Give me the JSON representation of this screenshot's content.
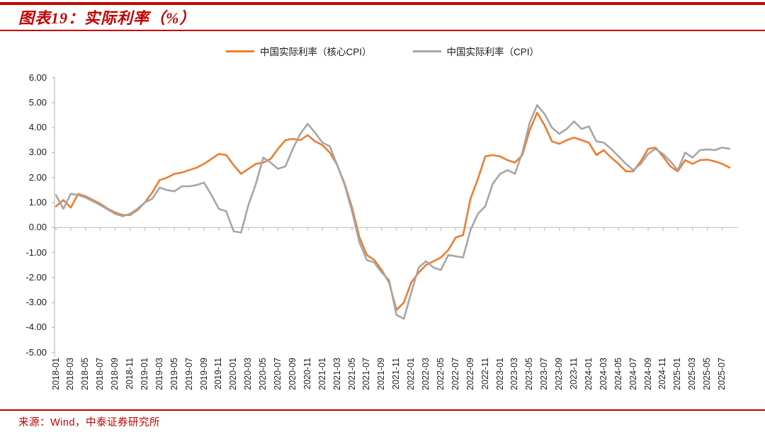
{
  "header": {
    "title": "图表19：实际利率（%）"
  },
  "colors": {
    "accent_red": "#C00000",
    "series_core_cpi": "#ED7D31",
    "series_cpi": "#A6A6A6",
    "axis_line": "#BFBFBF",
    "tick_mark": "#BFBFBF",
    "label_text": "#202020"
  },
  "legend": [
    {
      "label": "中国实际利率（核心CPI）",
      "color": "#ED7D31"
    },
    {
      "label": "中国实际利率（CPI）",
      "color": "#A6A6A6"
    }
  ],
  "footer": {
    "source": "来源：Wind，中泰证券研究所"
  },
  "chart_data": {
    "type": "line",
    "title": "图表19：实际利率（%）",
    "xlabel": "",
    "ylabel": "",
    "ylim": [
      -5,
      6
    ],
    "grid": false,
    "legend_position": "top",
    "y_ticks": [
      "6.00",
      "5.00",
      "4.00",
      "3.00",
      "2.00",
      "1.00",
      "0.00",
      "-1.00",
      "-2.00",
      "-3.00",
      "-4.00",
      "-5.00"
    ],
    "x_tick_labels": [
      "2018-01",
      "2018-03",
      "2018-05",
      "2018-07",
      "2018-09",
      "2018-11",
      "2019-01",
      "2019-03",
      "2019-05",
      "2019-07",
      "2019-09",
      "2019-11",
      "2020-01",
      "2020-03",
      "2020-05",
      "2020-07",
      "2020-09",
      "2020-11",
      "2021-01",
      "2021-03",
      "2021-05",
      "2021-07",
      "2021-09",
      "2021-11",
      "2022-01",
      "2022-03",
      "2022-05",
      "2022-07",
      "2022-09",
      "2022-11",
      "2023-01",
      "2023-03",
      "2023-05",
      "2023-07",
      "2023-09",
      "2023-11",
      "2024-01",
      "2024-03",
      "2024-05",
      "2024-07",
      "2024-09",
      "2024-11",
      "2025-01",
      "2025-03",
      "2025-05",
      "2025-07"
    ],
    "x": [
      "2018-01",
      "2018-02",
      "2018-03",
      "2018-04",
      "2018-05",
      "2018-06",
      "2018-07",
      "2018-08",
      "2018-09",
      "2018-10",
      "2018-11",
      "2018-12",
      "2019-01",
      "2019-02",
      "2019-03",
      "2019-04",
      "2019-05",
      "2019-06",
      "2019-07",
      "2019-08",
      "2019-09",
      "2019-10",
      "2019-11",
      "2019-12",
      "2020-01",
      "2020-02",
      "2020-03",
      "2020-04",
      "2020-05",
      "2020-06",
      "2020-07",
      "2020-08",
      "2020-09",
      "2020-10",
      "2020-11",
      "2020-12",
      "2021-01",
      "2021-02",
      "2021-03",
      "2021-04",
      "2021-05",
      "2021-06",
      "2021-07",
      "2021-08",
      "2021-09",
      "2021-10",
      "2021-11",
      "2021-12",
      "2022-01",
      "2022-02",
      "2022-03",
      "2022-04",
      "2022-05",
      "2022-06",
      "2022-07",
      "2022-08",
      "2022-09",
      "2022-10",
      "2022-11",
      "2022-12",
      "2023-01",
      "2023-02",
      "2023-03",
      "2023-04",
      "2023-05",
      "2023-06",
      "2023-07",
      "2023-08",
      "2023-09",
      "2023-10",
      "2023-11",
      "2023-12",
      "2024-01",
      "2024-02",
      "2024-03",
      "2024-04",
      "2024-05",
      "2024-06",
      "2024-07",
      "2024-08",
      "2024-09",
      "2024-10",
      "2024-11",
      "2024-12",
      "2025-01",
      "2025-02",
      "2025-03",
      "2025-04",
      "2025-05",
      "2025-06",
      "2025-07",
      "2025-08"
    ],
    "series": [
      {
        "name": "中国实际利率（核心CPI）",
        "color": "#ED7D31",
        "values": [
          0.85,
          1.1,
          0.8,
          1.35,
          1.25,
          1.1,
          0.95,
          0.75,
          0.6,
          0.5,
          0.5,
          0.7,
          1.0,
          1.4,
          1.9,
          2.0,
          2.15,
          2.2,
          2.3,
          2.4,
          2.55,
          2.75,
          2.95,
          2.9,
          2.5,
          2.15,
          2.35,
          2.55,
          2.6,
          2.75,
          3.15,
          3.5,
          3.55,
          3.5,
          3.7,
          3.45,
          3.3,
          3.0,
          2.5,
          1.75,
          0.8,
          -0.4,
          -1.1,
          -1.3,
          -1.7,
          -2.2,
          -3.3,
          -3.0,
          -2.2,
          -1.8,
          -1.5,
          -1.35,
          -1.2,
          -0.9,
          -0.4,
          -0.3,
          1.15,
          1.95,
          2.85,
          2.9,
          2.85,
          2.7,
          2.6,
          2.9,
          3.9,
          4.6,
          4.1,
          3.45,
          3.35,
          3.5,
          3.6,
          3.5,
          3.4,
          2.9,
          3.1,
          2.8,
          2.55,
          2.25,
          2.25,
          2.65,
          3.15,
          3.2,
          2.85,
          2.45,
          2.25,
          2.7,
          2.55,
          2.7,
          2.72,
          2.65,
          2.55,
          2.4
        ]
      },
      {
        "name": "中国实际利率（CPI）",
        "color": "#A6A6A6",
        "values": [
          1.3,
          0.75,
          1.35,
          1.3,
          1.2,
          1.05,
          0.9,
          0.72,
          0.55,
          0.45,
          0.55,
          0.75,
          1.0,
          1.15,
          1.6,
          1.5,
          1.45,
          1.65,
          1.65,
          1.7,
          1.8,
          1.3,
          0.75,
          0.65,
          -0.15,
          -0.2,
          0.9,
          1.75,
          2.8,
          2.6,
          2.35,
          2.45,
          3.15,
          3.75,
          4.15,
          3.8,
          3.4,
          3.25,
          2.5,
          1.7,
          0.65,
          -0.6,
          -1.3,
          -1.4,
          -1.8,
          -2.1,
          -3.5,
          -3.65,
          -2.6,
          -1.6,
          -1.35,
          -1.6,
          -1.7,
          -1.1,
          -1.15,
          -1.2,
          -0.1,
          0.55,
          0.85,
          1.75,
          2.15,
          2.3,
          2.15,
          3.0,
          4.2,
          4.9,
          4.55,
          4.0,
          3.75,
          3.95,
          4.25,
          3.95,
          4.05,
          3.45,
          3.4,
          3.15,
          2.85,
          2.55,
          2.3,
          2.55,
          2.95,
          3.15,
          2.95,
          2.65,
          2.3,
          3.0,
          2.8,
          3.1,
          3.13,
          3.1,
          3.2,
          3.15
        ]
      }
    ]
  }
}
